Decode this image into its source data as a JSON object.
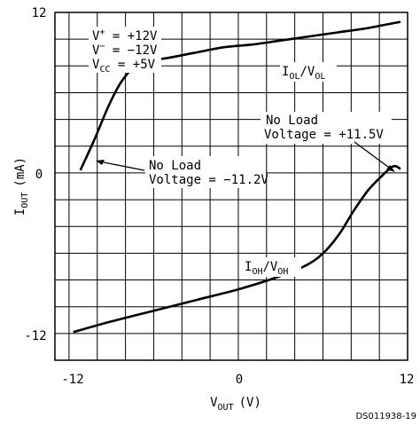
{
  "chart_data": {
    "type": "line",
    "xlabel": {
      "main": "V",
      "sub": "OUT",
      "unit": "(V)"
    },
    "ylabel": {
      "main": "I",
      "sub": "OUT",
      "unit": "(mA)"
    },
    "xlim": [
      -13,
      12
    ],
    "ylim": [
      -14,
      12
    ],
    "x_ticks": [
      "-12",
      "0",
      "12"
    ],
    "y_ticks": [
      "12",
      "0",
      "-12"
    ],
    "grid": true,
    "series": [
      {
        "name": "IOL/VOL",
        "x": [
          -11.2,
          -10.2,
          -9.2,
          -8.3,
          -7.3,
          -6.2,
          -5,
          -3,
          -1,
          1,
          3,
          5,
          7,
          9,
          10.5,
          11.5
        ],
        "y": [
          0.2,
          2.5,
          5.0,
          6.8,
          8.0,
          8.4,
          8.6,
          9.0,
          9.4,
          9.6,
          9.9,
          10.2,
          10.5,
          10.8,
          11.1,
          11.3
        ]
      },
      {
        "name": "IOH/VOH",
        "x": [
          -11.7,
          -9,
          -6,
          -3,
          0,
          3,
          5,
          6.2,
          7.2,
          8.2,
          9.2,
          10.2,
          11.0,
          11.5
        ],
        "y": [
          -11.9,
          -11.1,
          -10.3,
          -9.5,
          -8.7,
          -7.7,
          -6.8,
          -5.8,
          -4.5,
          -2.8,
          -1.3,
          -0.2,
          0.5,
          0.3
        ]
      }
    ],
    "annotations": {
      "supply": [
        {
          "main": "V",
          "sup": "+",
          "rest": " = +12V"
        },
        {
          "main": "V",
          "sup": "−",
          "rest": " = −12V"
        },
        {
          "main": "V",
          "sub": "CC",
          "rest": " = +5V"
        }
      ],
      "series_label_ol": {
        "a": "I",
        "a_sub": "OL",
        "b": "/V",
        "b_sub": "OL"
      },
      "series_label_oh": {
        "a": "I",
        "a_sub": "OH",
        "b": "/V",
        "b_sub": "OH"
      },
      "no_load_left": [
        "No Load",
        "Voltage = −11.2V"
      ],
      "no_load_right": [
        "No Load",
        "Voltage = +11.5V"
      ],
      "doc_id": "DS011938-19"
    }
  }
}
